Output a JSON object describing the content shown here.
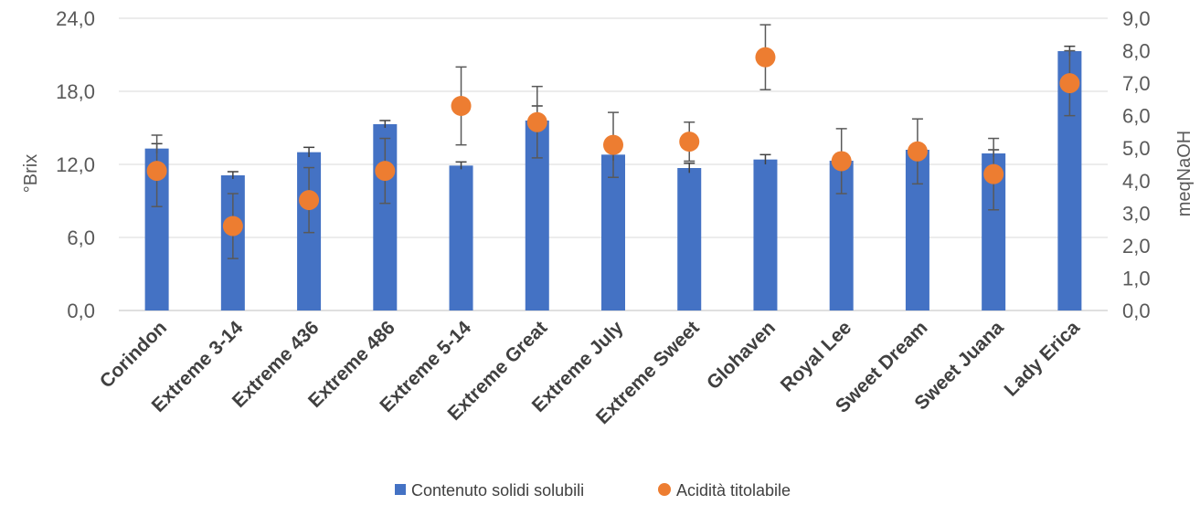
{
  "chart_data": {
    "type": "bar",
    "categories": [
      "Corindon",
      "Extreme 3-14",
      "Extreme 436",
      "Extreme 486",
      "Extreme 5-14",
      "Extreme Great",
      "Extreme July",
      "Extreme Sweet",
      "Glohaven",
      "Royal Lee",
      "Sweet Dream",
      "Sweet Juana",
      "Lady Erica"
    ],
    "ylabel": "°Brix",
    "y2label": "meqNaOH",
    "ylim": [
      0,
      24
    ],
    "y2lim": [
      0,
      9
    ],
    "yticks": [
      "0,0",
      "6,0",
      "12,0",
      "18,0",
      "24,0"
    ],
    "y2ticks": [
      "0,0",
      "1,0",
      "2,0",
      "3,0",
      "4,0",
      "5,0",
      "6,0",
      "7,0",
      "8,0",
      "9,0"
    ],
    "grid": true,
    "legend_position": "bottom",
    "series": [
      {
        "name": "Contenuto solidi solubili",
        "kind": "bar",
        "axis": "left",
        "color": "#4472C4",
        "values": [
          13.3,
          11.1,
          13.0,
          15.3,
          11.9,
          15.6,
          12.8,
          11.7,
          12.4,
          12.3,
          13.2,
          12.9,
          21.3
        ],
        "errors": [
          0.4,
          0.3,
          0.4,
          0.3,
          0.3,
          1.2,
          0.5,
          0.4,
          0.4,
          0.6,
          0.5,
          0.3,
          0.4
        ]
      },
      {
        "name": "Acidità titolabile",
        "kind": "scatter",
        "axis": "right",
        "color": "#ED7D31",
        "values": [
          4.3,
          2.6,
          3.4,
          4.3,
          6.3,
          5.8,
          5.1,
          5.2,
          7.8,
          4.6,
          4.9,
          4.2,
          7.0
        ],
        "errors": [
          1.1,
          1.0,
          1.0,
          1.0,
          1.2,
          1.1,
          1.0,
          0.6,
          1.0,
          1.0,
          1.0,
          1.1,
          1.0
        ]
      }
    ]
  }
}
